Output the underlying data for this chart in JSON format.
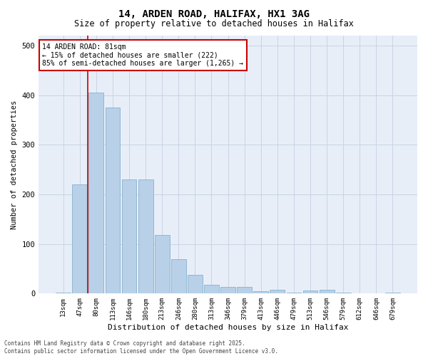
{
  "title1": "14, ARDEN ROAD, HALIFAX, HX1 3AG",
  "title2": "Size of property relative to detached houses in Halifax",
  "xlabel": "Distribution of detached houses by size in Halifax",
  "ylabel": "Number of detached properties",
  "categories": [
    "13sqm",
    "47sqm",
    "80sqm",
    "113sqm",
    "146sqm",
    "180sqm",
    "213sqm",
    "246sqm",
    "280sqm",
    "313sqm",
    "346sqm",
    "379sqm",
    "413sqm",
    "446sqm",
    "479sqm",
    "513sqm",
    "546sqm",
    "579sqm",
    "612sqm",
    "646sqm",
    "679sqm"
  ],
  "values": [
    2,
    220,
    405,
    375,
    230,
    230,
    118,
    70,
    38,
    17,
    14,
    13,
    5,
    7,
    2,
    6,
    8,
    2,
    1,
    1,
    2
  ],
  "bar_color": "#b8d0e8",
  "bar_edge_color": "#7aaac8",
  "red_line_index": 2,
  "annotation_line1": "14 ARDEN ROAD: 81sqm",
  "annotation_line2": "← 15% of detached houses are smaller (222)",
  "annotation_line3": "85% of semi-detached houses are larger (1,265) →",
  "annotation_box_color": "#ffffff",
  "annotation_box_edge": "#cc0000",
  "red_line_color": "#cc0000",
  "grid_color": "#c8d4e4",
  "background_color": "#e8eef8",
  "ylim": [
    0,
    520
  ],
  "footer1": "Contains HM Land Registry data © Crown copyright and database right 2025.",
  "footer2": "Contains public sector information licensed under the Open Government Licence v3.0."
}
